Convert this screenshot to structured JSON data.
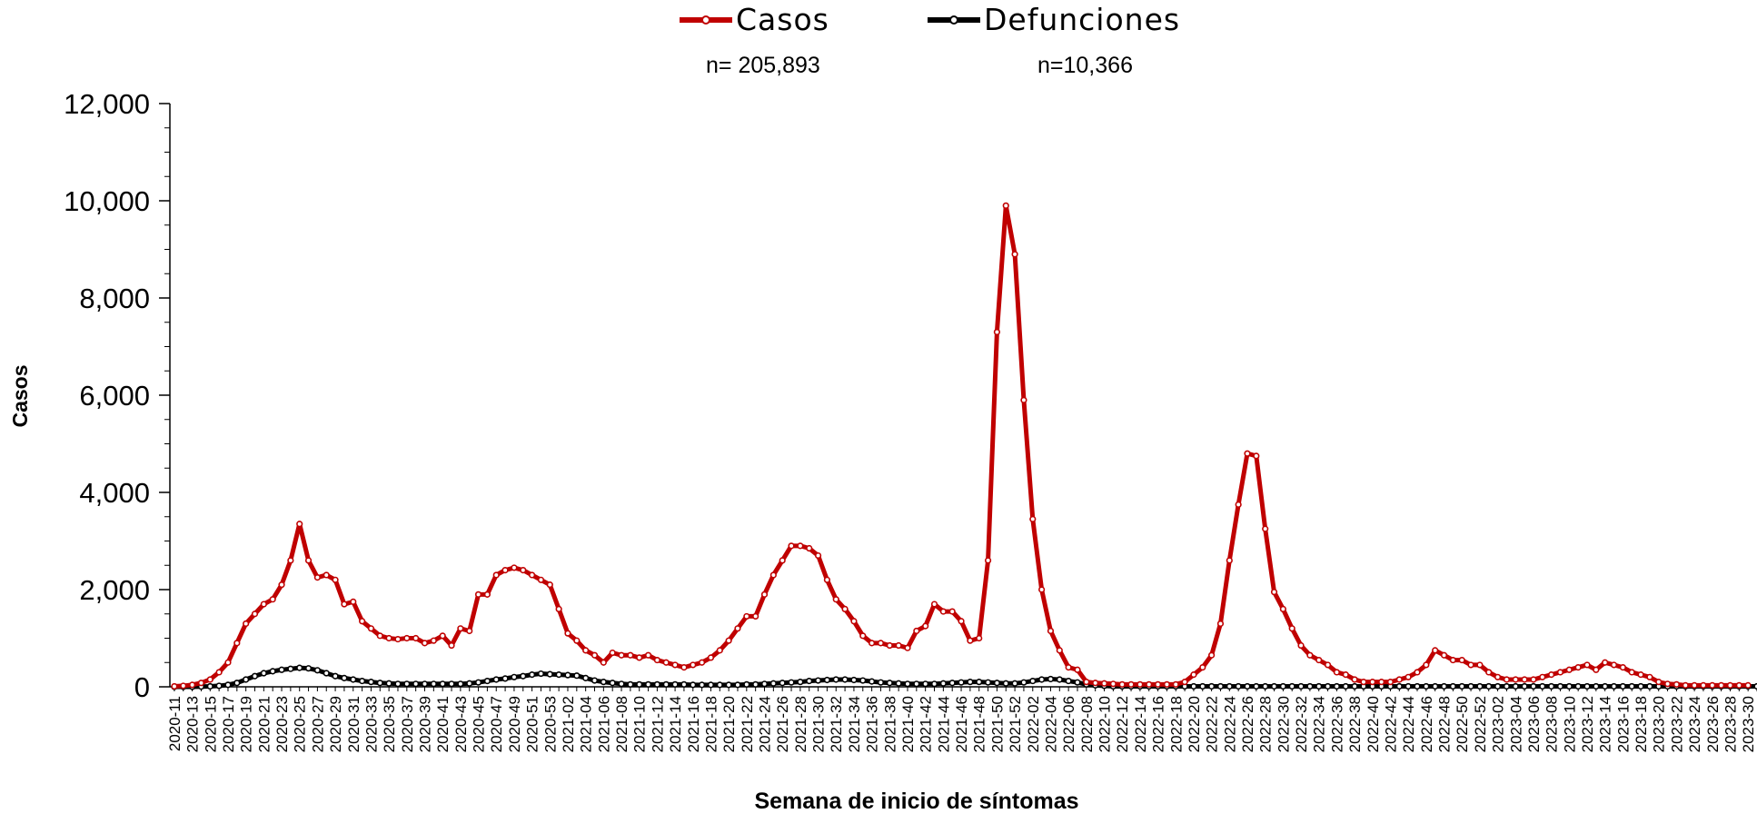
{
  "chart_data": {
    "type": "line",
    "ylabel": "Casos",
    "xlabel": "Semana de inicio de síntomas",
    "ylim": [
      0,
      12000
    ],
    "yticks": [
      0,
      2000,
      4000,
      6000,
      8000,
      10000,
      12000
    ],
    "ytick_labels": [
      "0",
      "2,000",
      "4,000",
      "6,000",
      "8,000",
      "10,000",
      "12,000"
    ],
    "grid": false,
    "legend_position": "top-center",
    "x_start": {
      "year": 2020,
      "week": 11
    },
    "x_end": {
      "year": 2023,
      "week": 31
    },
    "x_tick_labels": [
      "2020-11",
      "2020-13",
      "2020-15",
      "2020-17",
      "2020-19",
      "2020-21",
      "2020-23",
      "2020-25",
      "2020-27",
      "2020-29",
      "2020-31",
      "2020-33",
      "2020-35",
      "2020-37",
      "2020-39",
      "2020-41",
      "2020-43",
      "2020-45",
      "2020-47",
      "2020-49",
      "2020-51",
      "2020-53",
      "2021-02",
      "2021-04",
      "2021-06",
      "2021-08",
      "2021-10",
      "2021-12",
      "2021-14",
      "2021-16",
      "2021-18",
      "2021-20",
      "2021-22",
      "2021-24",
      "2021-26",
      "2021-28",
      "2021-30",
      "2021-32",
      "2021-34",
      "2021-36",
      "2021-38",
      "2021-40",
      "2021-42",
      "2021-44",
      "2021-46",
      "2021-48",
      "2021-50",
      "2021-52",
      "2022-02",
      "2022-04",
      "2022-06",
      "2022-08",
      "2022-10",
      "2022-12",
      "2022-14",
      "2022-16",
      "2022-18",
      "2022-20",
      "2022-22",
      "2022-24",
      "2022-26",
      "2022-28",
      "2022-30",
      "2022-32",
      "2022-34",
      "2022-36",
      "2022-38",
      "2022-40",
      "2022-42",
      "2022-44",
      "2022-46",
      "2022-48",
      "2022-50",
      "2022-52",
      "2023-02",
      "2023-04",
      "2023-06",
      "2023-08",
      "2023-10",
      "2023-12",
      "2023-14",
      "2023-16",
      "2023-18",
      "2023-20",
      "2023-22",
      "2023-24",
      "2023-26",
      "2023-28",
      "2023-30"
    ],
    "series": [
      {
        "name": "Casos",
        "n_label": "n= 205,893",
        "color": "#c00000",
        "values": [
          10,
          20,
          40,
          80,
          150,
          300,
          500,
          900,
          1300,
          1500,
          1700,
          1800,
          2100,
          2600,
          3350,
          2600,
          2250,
          2300,
          2200,
          1700,
          1750,
          1350,
          1200,
          1050,
          1000,
          980,
          1000,
          1000,
          900,
          950,
          1050,
          850,
          1200,
          1150,
          1900,
          1900,
          2300,
          2400,
          2450,
          2400,
          2300,
          2200,
          2100,
          1600,
          1100,
          950,
          750,
          650,
          500,
          700,
          650,
          650,
          600,
          650,
          550,
          500,
          450,
          400,
          450,
          500,
          600,
          750,
          950,
          1200,
          1450,
          1450,
          1900,
          2300,
          2600,
          2900,
          2900,
          2850,
          2700,
          2200,
          1800,
          1600,
          1350,
          1050,
          900,
          900,
          850,
          850,
          800,
          1150,
          1250,
          1700,
          1550,
          1550,
          1350,
          950,
          1000,
          2600,
          7300,
          9900,
          8900,
          5900,
          3450,
          2000,
          1150,
          750,
          400,
          350,
          100,
          80,
          70,
          60,
          50,
          50,
          50,
          50,
          50,
          50,
          50,
          100,
          250,
          400,
          650,
          1300,
          2600,
          3750,
          4800,
          4750,
          3250,
          1950,
          1600,
          1200,
          850,
          650,
          550,
          450,
          300,
          250,
          150,
          100,
          100,
          100,
          100,
          150,
          200,
          300,
          450,
          750,
          650,
          550,
          550,
          450,
          450,
          300,
          200,
          150,
          150,
          150,
          150,
          200,
          250,
          300,
          350,
          400,
          450,
          350,
          500,
          450,
          400,
          300,
          250,
          200,
          100,
          60,
          50,
          30,
          30,
          30,
          30,
          30,
          30,
          30,
          30
        ]
      },
      {
        "name": "Defunciones",
        "n_label": "n=10,366",
        "color": "#000000",
        "values": [
          0,
          0,
          0,
          5,
          10,
          20,
          40,
          80,
          150,
          220,
          280,
          320,
          350,
          370,
          390,
          380,
          340,
          280,
          220,
          180,
          150,
          120,
          100,
          80,
          70,
          60,
          60,
          60,
          60,
          60,
          60,
          60,
          60,
          70,
          90,
          120,
          150,
          170,
          200,
          220,
          250,
          270,
          260,
          250,
          240,
          230,
          180,
          130,
          100,
          80,
          60,
          50,
          50,
          50,
          50,
          50,
          50,
          50,
          40,
          40,
          40,
          40,
          40,
          40,
          50,
          50,
          60,
          70,
          80,
          90,
          100,
          120,
          130,
          140,
          150,
          150,
          140,
          130,
          110,
          90,
          80,
          70,
          60,
          60,
          60,
          60,
          70,
          80,
          90,
          100,
          100,
          90,
          80,
          70,
          70,
          90,
          120,
          150,
          160,
          150,
          120,
          90,
          50,
          30,
          20,
          10,
          10,
          10,
          10,
          10,
          10,
          10,
          10,
          10,
          10,
          10,
          10,
          10,
          10,
          10,
          10,
          10,
          10,
          10,
          10,
          10,
          10,
          10,
          10,
          10,
          10,
          10,
          10,
          10,
          10,
          10,
          10,
          10,
          10,
          10,
          10,
          10,
          10,
          10,
          10,
          10,
          10,
          10,
          10,
          10,
          10,
          10,
          10,
          10,
          10,
          10,
          10,
          10,
          10,
          10,
          10,
          10,
          10,
          10,
          10,
          10,
          10,
          10,
          10,
          10,
          10,
          10,
          10,
          10,
          10,
          10,
          10,
          10,
          10,
          10
        ]
      }
    ]
  }
}
